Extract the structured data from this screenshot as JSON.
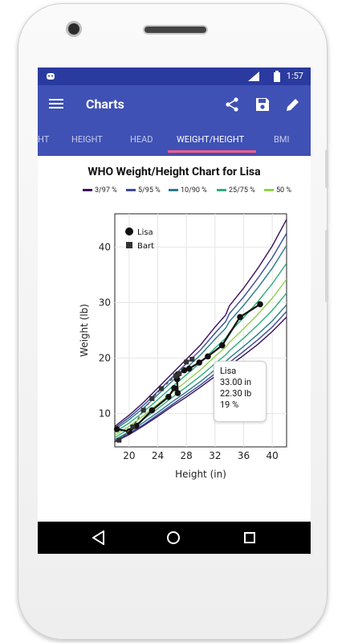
{
  "status": {
    "time": "1:57"
  },
  "appbar": {
    "title": "Charts"
  },
  "tabs": [
    "HT",
    "HEIGHT",
    "HEAD",
    "WEIGHT/HEIGHT",
    "BMI"
  ],
  "chart_data": {
    "type": "line",
    "title": "WHO Weight/Height Chart for Lisa",
    "xlabel": "Height (in)",
    "ylabel": "Weight (lb)",
    "xlim": [
      18,
      42
    ],
    "ylim": [
      4,
      46
    ],
    "xticks": [
      20,
      24,
      28,
      32,
      36,
      40
    ],
    "yticks": [
      10,
      20,
      30,
      40
    ],
    "percentile_legend": [
      {
        "name": "3/97 %",
        "color": "#3b0f5c"
      },
      {
        "name": "5/95 %",
        "color": "#3b4a9a"
      },
      {
        "name": "10/90 %",
        "color": "#2a7a8a"
      },
      {
        "name": "25/75 %",
        "color": "#2fae7a"
      },
      {
        "name": "50 %",
        "color": "#8fd14f"
      }
    ],
    "percentile_curves": {
      "x": [
        18,
        20,
        22,
        24,
        26,
        28,
        30,
        32,
        33.5,
        34,
        36,
        38,
        40,
        42
      ],
      "p3": [
        4.9,
        6.2,
        7.8,
        9.5,
        11.3,
        13.0,
        14.8,
        16.7,
        18.0,
        18.6,
        20.5,
        22.5,
        24.8,
        27.4
      ],
      "p5": [
        5.1,
        6.4,
        8.0,
        9.8,
        11.6,
        13.4,
        15.2,
        17.2,
        18.6,
        19.2,
        21.2,
        23.3,
        25.6,
        28.4
      ],
      "p10": [
        5.3,
        6.7,
        8.4,
        10.2,
        12.1,
        13.9,
        15.8,
        17.9,
        19.4,
        20.0,
        22.1,
        24.3,
        26.7,
        29.6
      ],
      "p25": [
        5.7,
        7.2,
        9.0,
        10.9,
        12.9,
        14.8,
        16.8,
        19.0,
        20.6,
        21.3,
        23.6,
        26.0,
        28.6,
        31.7
      ],
      "p50": [
        6.1,
        7.7,
        9.6,
        11.7,
        13.8,
        15.8,
        17.9,
        20.3,
        22.0,
        22.8,
        25.3,
        27.9,
        30.8,
        34.2
      ],
      "p75": [
        6.6,
        8.3,
        10.3,
        12.5,
        14.8,
        17.0,
        19.2,
        21.8,
        23.6,
        24.6,
        27.3,
        30.2,
        33.4,
        37.1
      ],
      "p90": [
        7.1,
        8.9,
        11.0,
        13.4,
        15.8,
        18.2,
        20.6,
        23.4,
        25.4,
        26.6,
        29.5,
        32.7,
        36.2,
        40.3
      ],
      "p95": [
        7.4,
        9.3,
        11.5,
        14.0,
        16.5,
        19.0,
        21.5,
        24.5,
        26.6,
        28.0,
        31.0,
        34.4,
        38.1,
        42.5
      ],
      "p97": [
        7.7,
        9.7,
        12.0,
        14.6,
        17.2,
        19.8,
        22.4,
        25.6,
        27.8,
        29.4,
        32.6,
        36.2,
        40.2,
        45.0
      ]
    },
    "series": [
      {
        "name": "Lisa",
        "marker": "circle",
        "color": "#111111",
        "x": [
          18.3,
          20,
          21,
          23.2,
          25.5,
          26.3,
          26.8,
          26.7,
          26.8,
          27.7,
          28.4,
          29.8,
          31.0,
          33.0,
          35.5,
          38.3
        ],
        "y": [
          7.2,
          6.8,
          7.8,
          10.6,
          13.0,
          14.6,
          13.7,
          16.2,
          17.1,
          17.8,
          18.1,
          19.2,
          20.3,
          22.3,
          27.4,
          29.7
        ]
      },
      {
        "name": "Bart",
        "marker": "square",
        "color": "#333333",
        "x": [
          18.6,
          20.5,
          22.0,
          23.2,
          24.5,
          26.5,
          27.0,
          28.0,
          28.8
        ],
        "y": [
          5.2,
          7.6,
          10.6,
          12.7,
          14.5,
          16.8,
          17.2,
          19.3,
          19.8
        ]
      }
    ],
    "tooltip": {
      "name": "Lisa",
      "height": "33.00 in",
      "weight": "22.30 lb",
      "percentile": "19 %"
    }
  }
}
